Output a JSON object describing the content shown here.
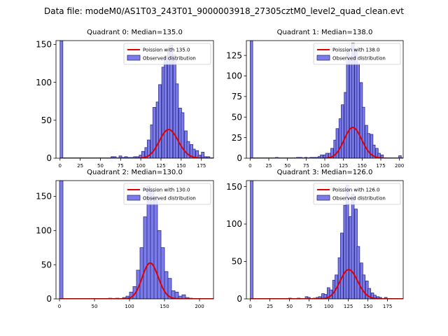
{
  "figure": {
    "title": "Data file: modeM0/AS1T03_243T01_9000003918_27305cztM0_level2_quad_clean.evt",
    "colors": {
      "histogram_fill": "#7b7bea",
      "histogram_edge": "#2d2d8a",
      "poisson_line": "#e00000",
      "axes": "#000000"
    }
  },
  "chart_data": [
    {
      "type": "bar",
      "title": "Quadrant 0: Median=135.0",
      "xlim": [
        -5,
        190
      ],
      "ylim": [
        0,
        155
      ],
      "xticks": [
        "0",
        "25",
        "50",
        "75",
        "100",
        "125",
        "150",
        "175"
      ],
      "yticks": [
        "0",
        "50",
        "100",
        "150"
      ],
      "legend": [
        "Poission with 135.0",
        "Observed distribution"
      ],
      "legend_position": "top-right",
      "bin_width": 3.5,
      "poisson_mean": 135.0,
      "poisson_total": 1100,
      "bins": [
        [
          0,
          155
        ],
        [
          63,
          2
        ],
        [
          66,
          2
        ],
        [
          73,
          3
        ],
        [
          77,
          1
        ],
        [
          80,
          2
        ],
        [
          84,
          1
        ],
        [
          87,
          1
        ],
        [
          91,
          2
        ],
        [
          94,
          2
        ],
        [
          98,
          4
        ],
        [
          101,
          9
        ],
        [
          105,
          14
        ],
        [
          108,
          24
        ],
        [
          112,
          44
        ],
        [
          115,
          67
        ],
        [
          119,
          74
        ],
        [
          122,
          97
        ],
        [
          126,
          120
        ],
        [
          129,
          135
        ],
        [
          133,
          140
        ],
        [
          136,
          149
        ],
        [
          140,
          136
        ],
        [
          143,
          98
        ],
        [
          147,
          66
        ],
        [
          150,
          60
        ],
        [
          154,
          36
        ],
        [
          157,
          22
        ],
        [
          161,
          18
        ],
        [
          164,
          12
        ],
        [
          168,
          10
        ],
        [
          171,
          4
        ],
        [
          175,
          8
        ],
        [
          178,
          2
        ],
        [
          182,
          2
        ]
      ]
    },
    {
      "type": "bar",
      "title": "Quadrant 1: Median=138.0",
      "xlim": [
        -5,
        205
      ],
      "ylim": [
        0,
        143
      ],
      "xticks": [
        "0",
        "25",
        "50",
        "75",
        "100",
        "125",
        "150",
        "175",
        "200"
      ],
      "yticks": [
        "0",
        "25",
        "50",
        "75",
        "100",
        "125"
      ],
      "legend": [
        "Poission with 138.0",
        "Observed distribution"
      ],
      "legend_position": "top-right",
      "bin_width": 3.5,
      "poisson_mean": 138.0,
      "poisson_total": 1100,
      "bins": [
        [
          0,
          143
        ],
        [
          34,
          1
        ],
        [
          62,
          1
        ],
        [
          66,
          1
        ],
        [
          73,
          1
        ],
        [
          80,
          1
        ],
        [
          84,
          1
        ],
        [
          87,
          1
        ],
        [
          91,
          2
        ],
        [
          94,
          4
        ],
        [
          98,
          4
        ],
        [
          101,
          6
        ],
        [
          105,
          6
        ],
        [
          108,
          12
        ],
        [
          112,
          22
        ],
        [
          115,
          36
        ],
        [
          119,
          48
        ],
        [
          122,
          65
        ],
        [
          126,
          80
        ],
        [
          129,
          131
        ],
        [
          133,
          120
        ],
        [
          136,
          140
        ],
        [
          140,
          132
        ],
        [
          143,
          115
        ],
        [
          147,
          92
        ],
        [
          150,
          62
        ],
        [
          154,
          40
        ],
        [
          157,
          30
        ],
        [
          161,
          29
        ],
        [
          164,
          16
        ],
        [
          168,
          12
        ],
        [
          171,
          6
        ],
        [
          175,
          4
        ],
        [
          199,
          3
        ]
      ]
    },
    {
      "type": "bar",
      "title": "Quadrant 2: Median=130.0",
      "xlim": [
        -5,
        220
      ],
      "ylim": [
        0,
        173
      ],
      "xticks": [
        "0",
        "50",
        "100",
        "150",
        "200"
      ],
      "yticks": [
        "0",
        "50",
        "100",
        "150"
      ],
      "legend": [
        "Poission with 130.0",
        "Observed distribution"
      ],
      "legend_position": "top-right",
      "bin_width": 5,
      "poisson_mean": 130.0,
      "poisson_total": 1500,
      "bins": [
        [
          0,
          173
        ],
        [
          70,
          1
        ],
        [
          80,
          1
        ],
        [
          90,
          2
        ],
        [
          95,
          4
        ],
        [
          100,
          10
        ],
        [
          105,
          18
        ],
        [
          110,
          42
        ],
        [
          115,
          75
        ],
        [
          120,
          120
        ],
        [
          125,
          165
        ],
        [
          130,
          158
        ],
        [
          135,
          150
        ],
        [
          140,
          100
        ],
        [
          145,
          75
        ],
        [
          150,
          40
        ],
        [
          155,
          30
        ],
        [
          160,
          12
        ],
        [
          165,
          10
        ],
        [
          170,
          4
        ],
        [
          175,
          6
        ],
        [
          180,
          2
        ],
        [
          185,
          1
        ]
      ]
    },
    {
      "type": "bar",
      "title": "Quadrant 3: Median=126.0",
      "xlim": [
        -5,
        195
      ],
      "ylim": [
        0,
        158
      ],
      "xticks": [
        "0",
        "25",
        "50",
        "75",
        "100",
        "125",
        "150",
        "175"
      ],
      "yticks": [
        "0",
        "50",
        "100",
        "150"
      ],
      "legend": [
        "Poission with 126.0",
        "Observed distribution"
      ],
      "legend_position": "top-right",
      "bin_width": 3.5,
      "poisson_mean": 126.0,
      "poisson_total": 1100,
      "bins": [
        [
          0,
          158
        ],
        [
          49,
          1
        ],
        [
          60,
          1
        ],
        [
          70,
          3
        ],
        [
          73,
          2
        ],
        [
          80,
          1
        ],
        [
          84,
          2
        ],
        [
          87,
          3
        ],
        [
          91,
          7
        ],
        [
          94,
          6
        ],
        [
          98,
          15
        ],
        [
          101,
          12
        ],
        [
          105,
          25
        ],
        [
          108,
          32
        ],
        [
          112,
          55
        ],
        [
          115,
          88
        ],
        [
          119,
          125
        ],
        [
          122,
          152
        ],
        [
          126,
          110
        ],
        [
          129,
          140
        ],
        [
          133,
          120
        ],
        [
          136,
          70
        ],
        [
          140,
          48
        ],
        [
          143,
          32
        ],
        [
          147,
          24
        ],
        [
          150,
          14
        ],
        [
          154,
          8
        ],
        [
          157,
          5
        ],
        [
          161,
          3
        ],
        [
          164,
          2
        ],
        [
          171,
          2
        ]
      ]
    }
  ]
}
